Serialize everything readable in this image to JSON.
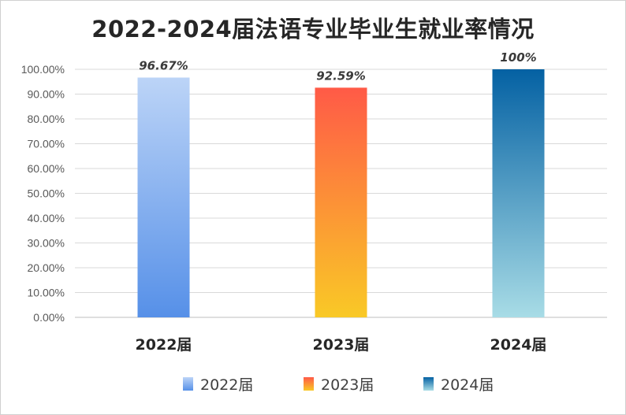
{
  "chart_data": {
    "type": "bar",
    "title": "2022-2024届法语专业毕业生就业率情况",
    "categories": [
      "2022届",
      "2023届",
      "2024届"
    ],
    "values": [
      96.67,
      92.59,
      100
    ],
    "data_labels": [
      "96.67%",
      "92.59%",
      "100%"
    ],
    "y_ticks": [
      "0.00%",
      "10.00%",
      "20.00%",
      "30.00%",
      "40.00%",
      "50.00%",
      "60.00%",
      "70.00%",
      "80.00%",
      "90.00%",
      "100.00%"
    ],
    "ylim": [
      0,
      100
    ],
    "grid": true,
    "legend_position": "bottom",
    "legend": [
      "2022届",
      "2023届",
      "2024届"
    ],
    "bar_gradients": [
      [
        "#bcd4f7",
        "#5690e8"
      ],
      [
        "#ff5a47",
        "#f9c926"
      ],
      [
        "#0461a3",
        "#a8dce6"
      ]
    ]
  }
}
